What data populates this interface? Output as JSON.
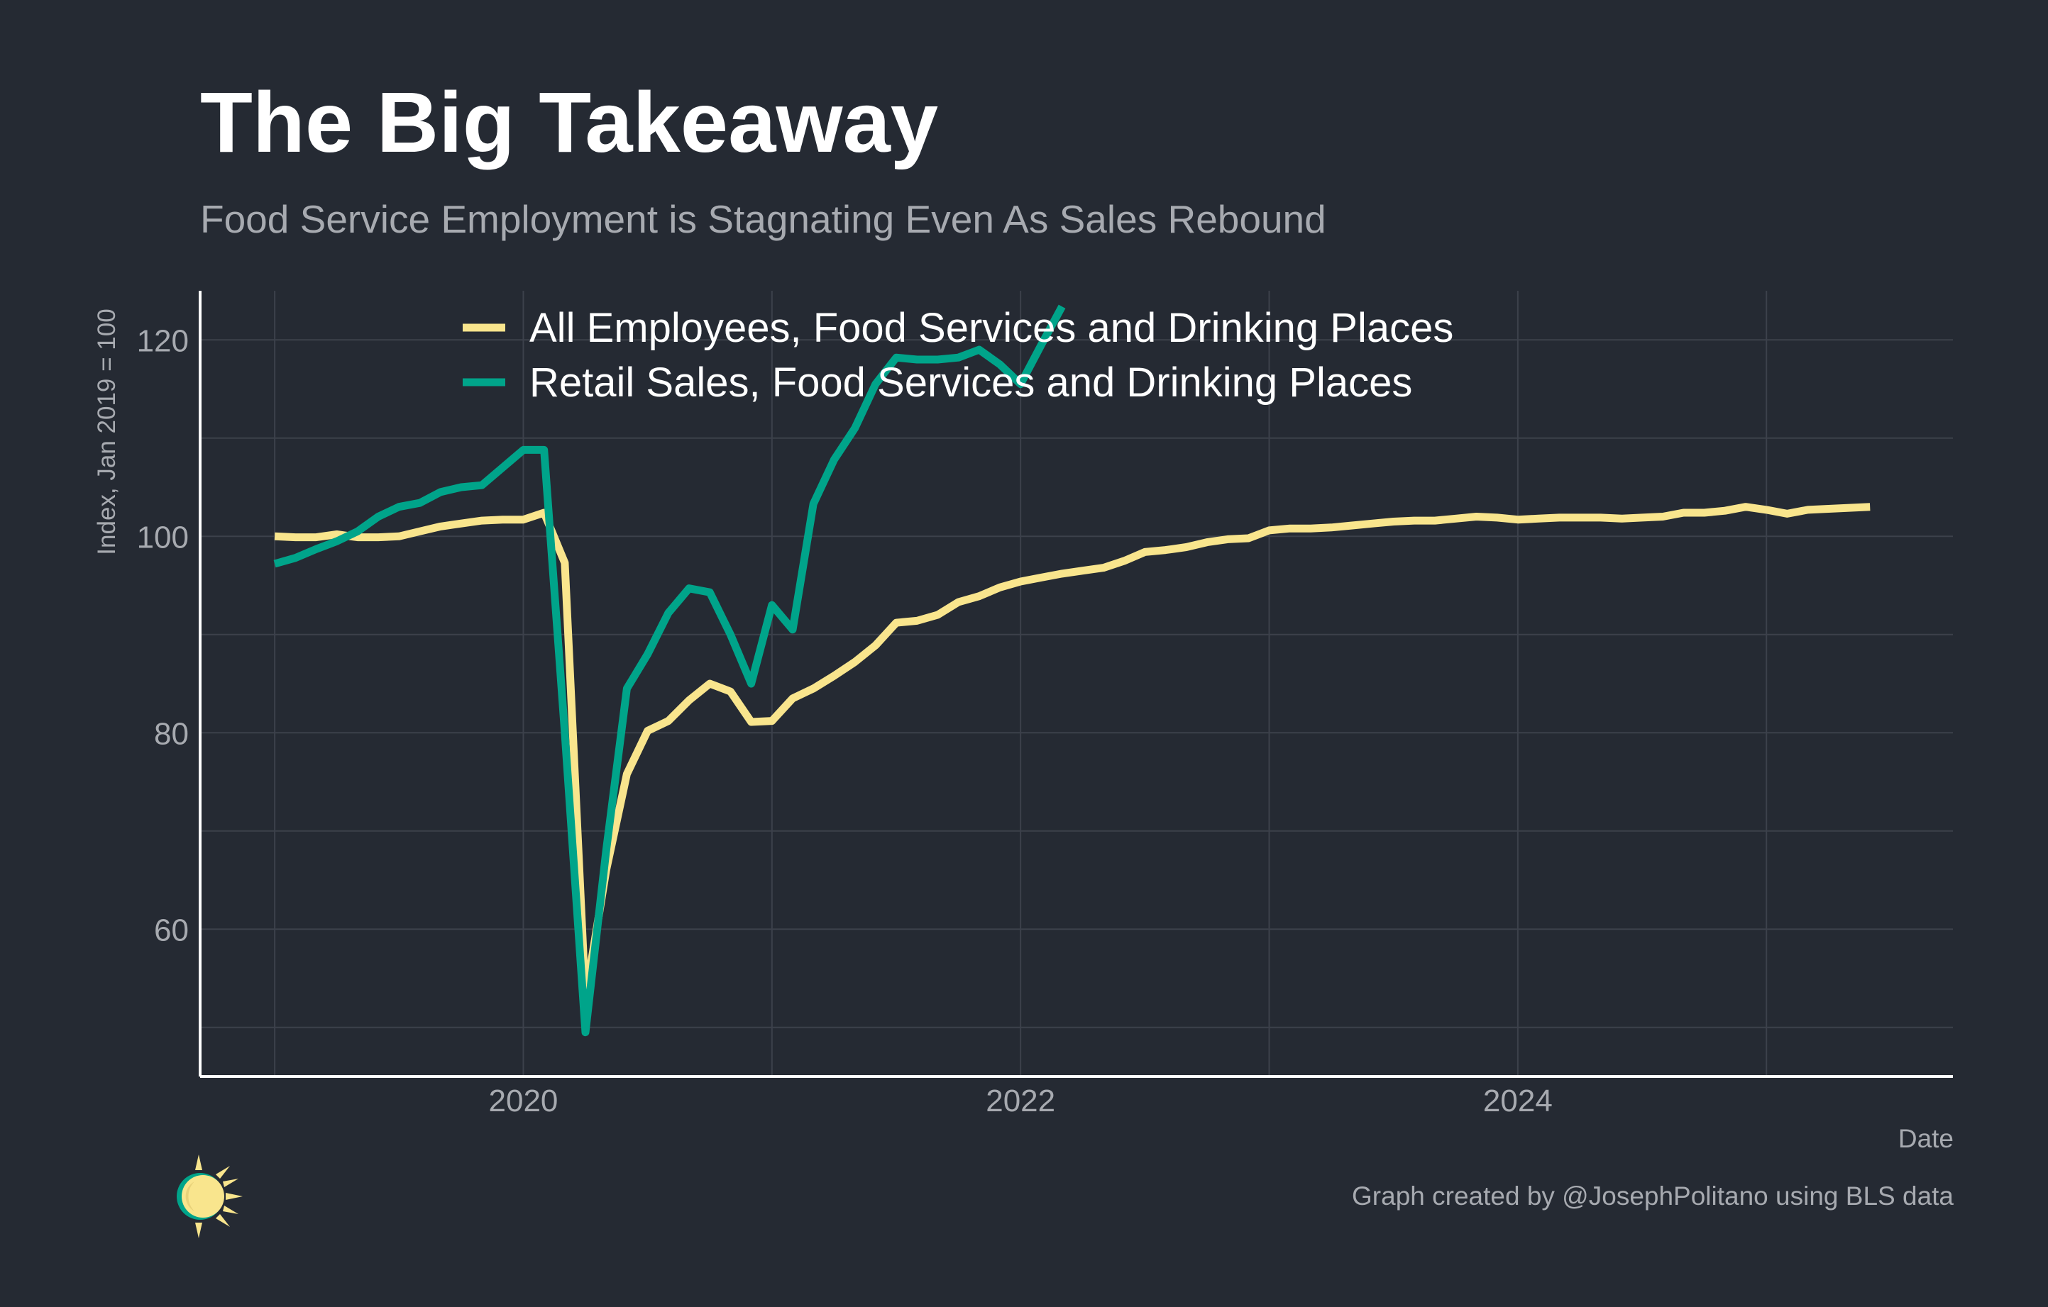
{
  "header": {
    "title": "The Big Takeaway",
    "subtitle": "Food Service Employment is Stagnating Even As Sales Rebound"
  },
  "footer": {
    "xlabel": "Date",
    "credit": "Graph created by @JosephPolitano using BLS data",
    "logo_icon": "sun-logo-icon"
  },
  "colors": {
    "background": "#252a33",
    "employees": "#f9e58d",
    "sales": "#00a48a",
    "grid": "#3c414b",
    "axis": "#ffffff",
    "tick": "#a7aab0"
  },
  "chart_data": {
    "type": "line",
    "title": "The Big Takeaway",
    "subtitle": "Food Service Employment is Stagnating Even As Sales Rebound",
    "xlabel": "Date",
    "ylabel": "Index, Jan 2019 = 100",
    "xlim": [
      2018.7,
      2025.75
    ],
    "ylim": [
      45,
      125
    ],
    "xticks": [
      2020,
      2022,
      2024
    ],
    "yticks": [
      60,
      80,
      100,
      120
    ],
    "grid": true,
    "legend_position": "top",
    "series": [
      {
        "name": "All Employees, Food Services and Drinking Places",
        "color": "#f9e58d",
        "start": "2019-01",
        "values": [
          100.0,
          99.9,
          99.9,
          100.2,
          99.9,
          99.9,
          100.0,
          100.5,
          101.0,
          101.3,
          101.6,
          101.7,
          101.7,
          102.4,
          97.3,
          53.0,
          66.0,
          75.8,
          80.2,
          81.2,
          83.3,
          85.0,
          84.2,
          81.1,
          81.2,
          83.5,
          84.5,
          85.8,
          87.2,
          88.9,
          91.2,
          91.4,
          92.0,
          93.3,
          93.9,
          94.8,
          95.4,
          95.8,
          96.2,
          96.5,
          96.8,
          97.5,
          98.4,
          98.6,
          98.9,
          99.4,
          99.7,
          99.8,
          100.6,
          100.8,
          100.8,
          100.9,
          101.1,
          101.3,
          101.5,
          101.6,
          101.6,
          101.8,
          102.0,
          101.9,
          101.7,
          101.8,
          101.9,
          101.9,
          101.9,
          101.8,
          101.9,
          102.0,
          102.4,
          102.4,
          102.6,
          103.0,
          102.7,
          102.3,
          102.7,
          102.8,
          102.9,
          103.0
        ]
      },
      {
        "name": "Retail Sales, Food Services and Drinking Places",
        "color": "#00a48a",
        "start": "2019-01",
        "values": [
          97.2,
          97.8,
          98.7,
          99.5,
          100.5,
          102.0,
          103.0,
          103.4,
          104.5,
          105.0,
          105.2,
          107.0,
          108.8,
          108.8,
          80.0,
          49.5,
          68.0,
          84.5,
          88.0,
          92.2,
          94.7,
          94.3,
          90.0,
          85.0,
          93.0,
          90.5,
          103.3,
          107.8,
          111.0,
          115.5,
          118.2,
          118.0,
          118.0,
          118.2,
          119.0,
          117.5,
          115.5,
          119.5,
          123.4
        ]
      }
    ]
  }
}
